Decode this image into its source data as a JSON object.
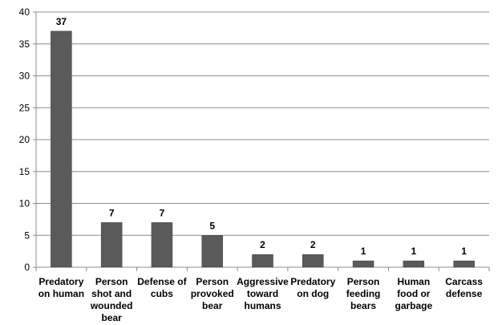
{
  "chart_data": {
    "type": "bar",
    "title": "",
    "xlabel": "",
    "ylabel": "",
    "ylim": [
      0,
      40
    ],
    "yticks": [
      0,
      5,
      10,
      15,
      20,
      25,
      30,
      35,
      40
    ],
    "grid": true,
    "legend": "none",
    "bar_color": "#5a5a5a",
    "categories": [
      [
        "Predatory",
        "on human"
      ],
      [
        "Person",
        "shot and",
        "wounded",
        "bear"
      ],
      [
        "Defense of",
        "cubs"
      ],
      [
        "Person",
        "provoked",
        "bear"
      ],
      [
        "Aggressive",
        "toward",
        "humans"
      ],
      [
        "Predatory",
        "on dog"
      ],
      [
        "Person",
        "feeding",
        "bears"
      ],
      [
        "Human",
        "food or",
        "garbage"
      ],
      [
        "Carcass",
        "defense"
      ]
    ],
    "values": [
      37,
      7,
      7,
      5,
      2,
      2,
      1,
      1,
      1
    ]
  }
}
